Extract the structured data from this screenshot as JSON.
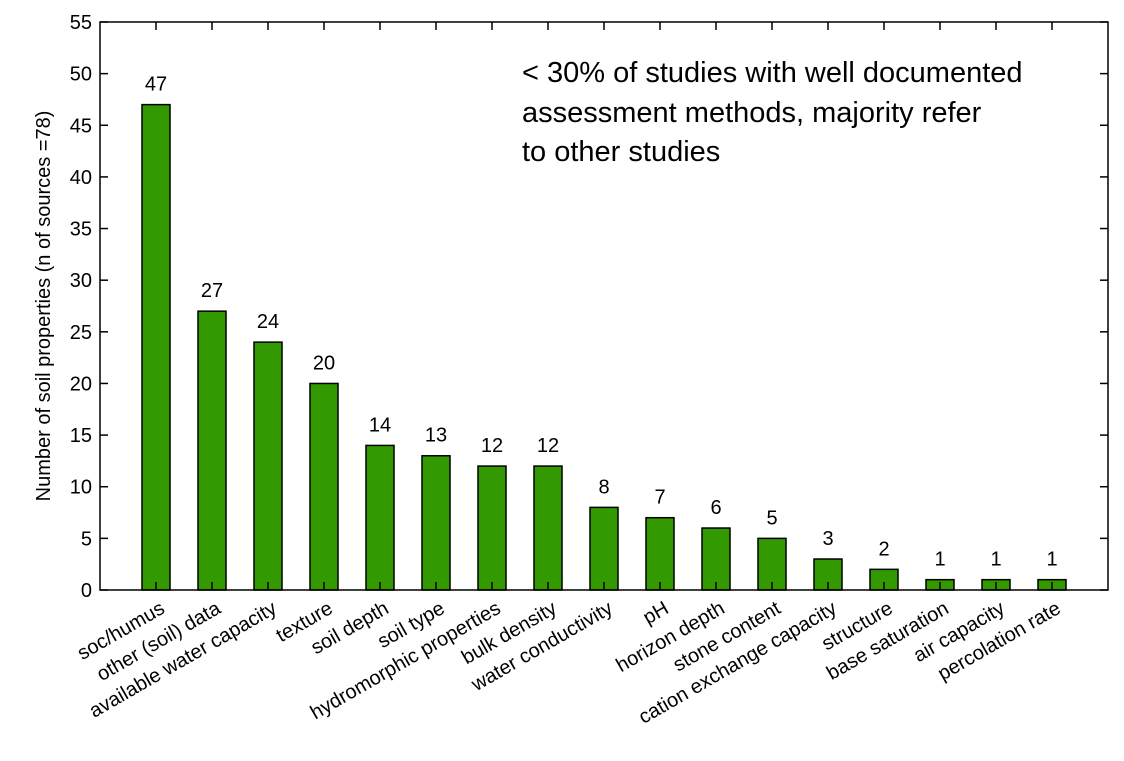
{
  "chart_data": {
    "type": "bar",
    "categories": [
      "soc/humus",
      "other (soil) data",
      "available water capacity",
      "texture",
      "soil depth",
      "soil type",
      "hydromorphic properties",
      "bulk density",
      "water conductivity",
      "pH",
      "horizon depth",
      "stone content",
      "cation exchange capacity",
      "structure",
      "base saturation",
      "air capacity",
      "percolation rate"
    ],
    "values": [
      47,
      27,
      24,
      20,
      14,
      13,
      12,
      12,
      8,
      7,
      6,
      5,
      3,
      2,
      1,
      1,
      1
    ],
    "data_labels": [
      "47",
      "27",
      "24",
      "20",
      "14",
      "13",
      "12",
      "12",
      "8",
      "7",
      "6",
      "5",
      "3",
      "2",
      "1",
      "1",
      "1"
    ],
    "ylabel": "Number of soil properties (n of sources =78)",
    "ylim": [
      0,
      55
    ],
    "yticks": [
      0,
      5,
      10,
      15,
      20,
      25,
      30,
      35,
      40,
      45,
      50,
      55
    ],
    "annotation": [
      "< 30% of studies with well documented",
      "assessment methods, majority refer",
      "to other studies"
    ],
    "bar_color": "#339900",
    "grid": false
  }
}
